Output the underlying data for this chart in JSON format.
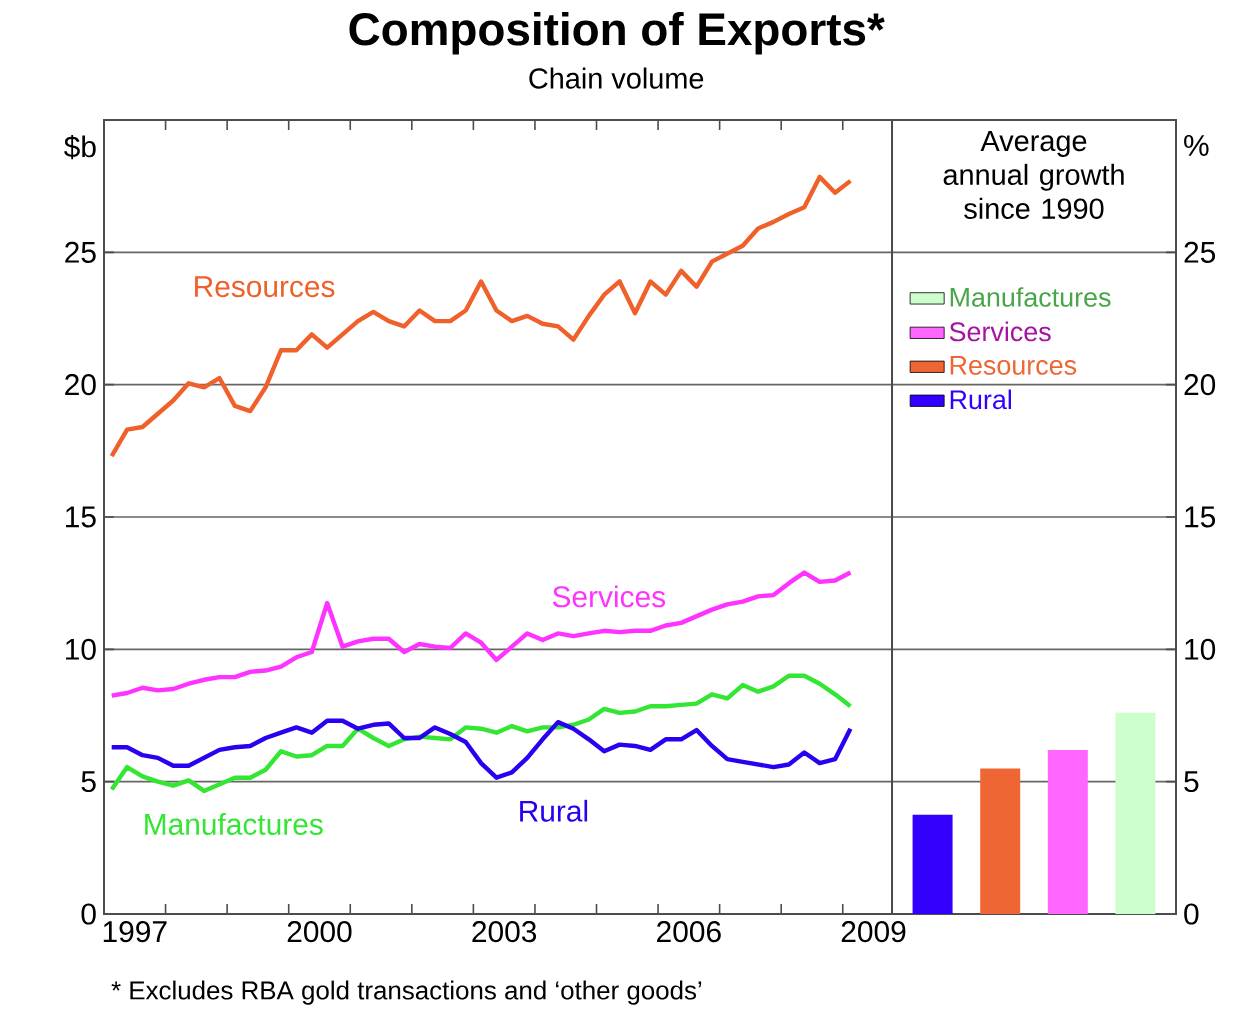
{
  "chart_data": [
    {
      "type": "line",
      "title": "Composition of Exports*",
      "subtitle": "Chain volume",
      "ylabel": "$b",
      "annotations": [
        "*   Excludes RBA gold transactions and ‘other goods’"
      ],
      "x": [
        1997.125,
        1997.375,
        1997.625,
        1997.875,
        1998.125,
        1998.375,
        1998.625,
        1998.875,
        1999.125,
        1999.375,
        1999.625,
        1999.875,
        2000.125,
        2000.375,
        2000.625,
        2000.875,
        2001.125,
        2001.375,
        2001.625,
        2001.875,
        2002.125,
        2002.375,
        2002.625,
        2002.875,
        2003.125,
        2003.375,
        2003.625,
        2003.875,
        2004.125,
        2004.375,
        2004.625,
        2004.875,
        2005.125,
        2005.375,
        2005.625,
        2005.875,
        2006.125,
        2006.375,
        2006.625,
        2006.875,
        2007.125,
        2007.375,
        2007.625,
        2007.875,
        2008.125,
        2008.375,
        2008.625,
        2008.875,
        2009.125
      ],
      "xlim": [
        1997,
        2009.8
      ],
      "xticks": [
        {
          "value": 1997.5,
          "label": "1997"
        },
        {
          "value": 1998,
          "label": null
        },
        {
          "value": 1999,
          "label": null
        },
        {
          "value": 2000,
          "label": null
        },
        {
          "value": 2000.5,
          "label": "2000"
        },
        {
          "value": 2001,
          "label": null
        },
        {
          "value": 2002,
          "label": null
        },
        {
          "value": 2003,
          "label": null
        },
        {
          "value": 2003.5,
          "label": "2003"
        },
        {
          "value": 2004,
          "label": null
        },
        {
          "value": 2005,
          "label": null
        },
        {
          "value": 2006,
          "label": null
        },
        {
          "value": 2006.5,
          "label": "2006"
        },
        {
          "value": 2007,
          "label": null
        },
        {
          "value": 2008,
          "label": null
        },
        {
          "value": 2009,
          "label": null
        },
        {
          "value": 2009.5,
          "label": "2009"
        }
      ],
      "ylim": [
        0,
        30
      ],
      "yticks": [
        0,
        5,
        10,
        15,
        20,
        25
      ],
      "grid": "y",
      "series": [
        {
          "name": "Resources",
          "color": "#f0602a",
          "values": [
            17.3,
            18.3,
            18.4,
            18.9,
            19.4,
            20.05,
            19.9,
            20.25,
            19.2,
            19.0,
            19.9,
            21.3,
            21.3,
            21.9,
            21.4,
            21.9,
            22.4,
            22.75,
            22.4,
            22.2,
            22.8,
            22.4,
            22.4,
            22.8,
            23.9,
            22.8,
            22.4,
            22.6,
            22.3,
            22.2,
            21.7,
            22.6,
            23.4,
            23.9,
            22.7,
            23.9,
            23.4,
            24.3,
            23.7,
            24.65,
            24.95,
            25.25,
            25.9,
            26.15,
            26.45,
            26.7,
            27.85,
            27.25,
            27.7
          ]
        },
        {
          "name": "Services",
          "color": "#ff33ff",
          "values": [
            8.25,
            8.35,
            8.55,
            8.45,
            8.5,
            8.7,
            8.85,
            8.95,
            8.95,
            9.15,
            9.2,
            9.35,
            9.7,
            9.9,
            11.75,
            10.1,
            10.3,
            10.4,
            10.4,
            9.9,
            10.2,
            10.1,
            10.05,
            10.6,
            10.25,
            9.6,
            10.1,
            10.6,
            10.35,
            10.6,
            10.5,
            10.6,
            10.7,
            10.65,
            10.7,
            10.7,
            10.9,
            11.0,
            11.25,
            11.5,
            11.7,
            11.8,
            12.0,
            12.05,
            12.5,
            12.9,
            12.55,
            12.6,
            12.9
          ]
        },
        {
          "name": "Manufactures",
          "color": "#33e633",
          "values": [
            4.7,
            5.55,
            5.2,
            5.0,
            4.85,
            5.05,
            4.65,
            4.9,
            5.15,
            5.15,
            5.45,
            6.15,
            5.95,
            6.0,
            6.35,
            6.35,
            7.0,
            6.65,
            6.35,
            6.6,
            6.7,
            6.65,
            6.6,
            7.05,
            7.0,
            6.85,
            7.1,
            6.9,
            7.05,
            7.05,
            7.15,
            7.35,
            7.75,
            7.6,
            7.65,
            7.85,
            7.85,
            7.9,
            7.95,
            8.3,
            8.15,
            8.65,
            8.4,
            8.6,
            9.0,
            9.0,
            8.7,
            8.3,
            7.85
          ]
        },
        {
          "name": "Rural",
          "color": "#2a00f0",
          "values": [
            6.3,
            6.3,
            6.0,
            5.9,
            5.6,
            5.6,
            5.9,
            6.2,
            6.3,
            6.35,
            6.65,
            6.85,
            7.05,
            6.85,
            7.3,
            7.3,
            7.0,
            7.15,
            7.2,
            6.65,
            6.65,
            7.05,
            6.8,
            6.5,
            5.7,
            5.15,
            5.35,
            5.9,
            6.6,
            7.25,
            7.0,
            6.6,
            6.15,
            6.4,
            6.35,
            6.2,
            6.6,
            6.6,
            6.95,
            6.35,
            5.85,
            5.75,
            5.65,
            5.55,
            5.65,
            6.1,
            5.7,
            5.85,
            7.0
          ]
        }
      ]
    },
    {
      "type": "bar",
      "title": "Average annual growth since 1990",
      "ylabel": "%",
      "categories": [
        null,
        null,
        null,
        null
      ],
      "ylim": [
        0,
        30
      ],
      "yticks": [
        0,
        5,
        10,
        15,
        20,
        25
      ],
      "grid": "y",
      "legend": "top left",
      "series": [
        {
          "name": "Rural",
          "color": "#3300ff",
          "values": [
            3.75,
            null,
            null,
            null
          ]
        },
        {
          "name": "Resources",
          "color": "#ee6633",
          "values": [
            null,
            5.5,
            null,
            null
          ]
        },
        {
          "name": "Services",
          "color": "#ff66ff",
          "values": [
            null,
            null,
            6.2,
            null
          ]
        },
        {
          "name": "Manufactures",
          "color": "#ccffcc",
          "values": [
            null,
            null,
            null,
            7.6
          ]
        }
      ]
    }
  ]
}
